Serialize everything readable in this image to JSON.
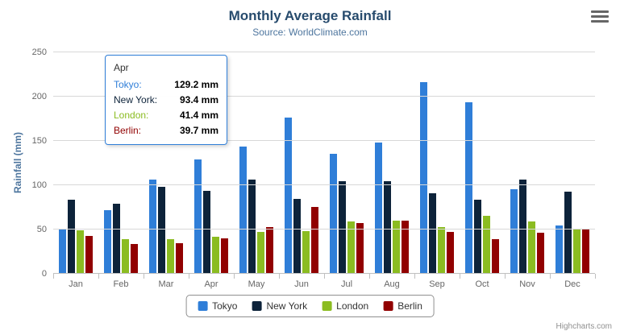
{
  "chart": {
    "title": "Monthly Average Rainfall",
    "subtitle": "Source: WorldClimate.com",
    "credits": "Highcharts.com",
    "export_menu_icon": "hamburger-icon"
  },
  "chart_data": {
    "type": "bar",
    "categories": [
      "Jan",
      "Feb",
      "Mar",
      "Apr",
      "May",
      "Jun",
      "Jul",
      "Aug",
      "Sep",
      "Oct",
      "Nov",
      "Dec"
    ],
    "series": [
      {
        "name": "Tokyo",
        "color": "#2f7ed8",
        "values": [
          49.9,
          71.5,
          106.4,
          129.2,
          144.0,
          176.0,
          135.6,
          148.5,
          216.4,
          194.1,
          95.6,
          54.4
        ]
      },
      {
        "name": "New York",
        "color": "#0d233a",
        "values": [
          83.6,
          78.8,
          98.5,
          93.4,
          106.0,
          84.5,
          105.0,
          104.3,
          91.2,
          83.5,
          106.6,
          92.3
        ]
      },
      {
        "name": "London",
        "color": "#8bbc21",
        "values": [
          48.9,
          38.8,
          39.3,
          41.4,
          47.0,
          48.3,
          59.0,
          59.6,
          52.4,
          65.2,
          59.3,
          51.2
        ]
      },
      {
        "name": "Berlin",
        "color": "#910000",
        "values": [
          42.4,
          33.2,
          34.5,
          39.7,
          52.6,
          75.5,
          57.4,
          60.4,
          47.6,
          39.1,
          46.8,
          51.1
        ]
      }
    ],
    "title": "Monthly Average Rainfall",
    "subtitle": "Source: WorldClimate.com",
    "xlabel": "",
    "ylabel": "Rainfall (mm)",
    "ylim": [
      0,
      250
    ],
    "yticks": [
      0,
      50,
      100,
      150,
      200,
      250
    ],
    "grid": true,
    "legend_position": "bottom"
  },
  "tooltip": {
    "header": "Apr",
    "border_color": "#2f7ed8",
    "rows": [
      {
        "label": "Tokyo:",
        "value": "129.2 mm",
        "color": "#2f7ed8"
      },
      {
        "label": "New York:",
        "value": "93.4 mm",
        "color": "#0d233a"
      },
      {
        "label": "London:",
        "value": "41.4 mm",
        "color": "#8bbc21"
      },
      {
        "label": "Berlin:",
        "value": "39.7 mm",
        "color": "#910000"
      }
    ]
  },
  "legend": {
    "items": [
      "Tokyo",
      "New York",
      "London",
      "Berlin"
    ]
  }
}
